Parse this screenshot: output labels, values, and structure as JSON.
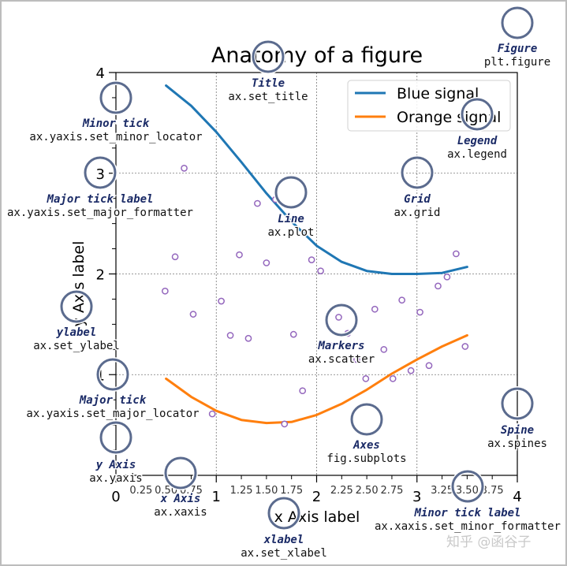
{
  "watermark": "知乎 @函谷子",
  "chart_data": {
    "type": "line",
    "title": "Anatomy of a figure",
    "xlabel": "x Axis label",
    "ylabel": "y Axis label",
    "xlim": [
      0,
      4
    ],
    "ylim": [
      0,
      4
    ],
    "grid": true,
    "major_xticks": [
      0,
      1,
      2,
      3,
      4
    ],
    "major_xtick_labels": [
      "0",
      "1",
      "2",
      "3",
      "4"
    ],
    "major_yticks": [
      1,
      2,
      3,
      4
    ],
    "major_ytick_labels": [
      "1",
      "2",
      "3",
      "4"
    ],
    "minor_xticks": [
      0.25,
      0.5,
      0.75,
      1.25,
      1.5,
      1.75,
      2.25,
      2.5,
      2.75,
      3.25,
      3.5,
      3.75
    ],
    "minor_xtick_labels": [
      "0.25",
      "0.50",
      "0.75",
      "1.25",
      "1.50",
      "1.75",
      "2.25",
      "2.50",
      "2.75",
      "3.25",
      "3.50",
      "3.75"
    ],
    "minor_yticks": [
      0.25,
      0.5,
      0.75,
      1.25,
      1.5,
      1.75,
      2.25,
      2.5,
      2.75,
      3.25,
      3.5,
      3.75
    ],
    "legend": {
      "placement": "top-right",
      "entries": [
        "Blue signal",
        "Orange signal"
      ]
    },
    "series": [
      {
        "name": "Blue signal",
        "color": "#1f77b4",
        "x": [
          0.5,
          0.75,
          1.0,
          1.25,
          1.5,
          1.75,
          2.0,
          2.25,
          2.5,
          2.75,
          3.0,
          3.25,
          3.5
        ],
        "values": [
          3.87,
          3.67,
          3.41,
          3.11,
          2.8,
          2.52,
          2.28,
          2.12,
          2.03,
          2.0,
          2.0,
          2.01,
          2.07
        ]
      },
      {
        "name": "Orange signal",
        "color": "#ff7f0e",
        "x": [
          0.5,
          0.75,
          1.0,
          1.25,
          1.5,
          1.75,
          2.0,
          2.25,
          2.5,
          2.75,
          3.0,
          3.25,
          3.5
        ],
        "values": [
          0.96,
          0.78,
          0.64,
          0.55,
          0.52,
          0.53,
          0.6,
          0.71,
          0.85,
          1.01,
          1.15,
          1.28,
          1.39
        ]
      }
    ],
    "scatter": {
      "color": "#9467bd",
      "x": [
        0.49,
        0.59,
        0.68,
        0.77,
        0.96,
        1.05,
        1.14,
        1.23,
        1.32,
        1.41,
        1.5,
        1.59,
        1.68,
        1.77,
        1.86,
        1.95,
        2.04,
        2.13,
        2.22,
        2.31,
        2.4,
        2.49,
        2.58,
        2.67,
        2.76,
        2.85,
        2.94,
        3.03,
        3.12,
        3.21,
        3.3,
        3.39,
        3.48
      ],
      "y": [
        1.83,
        2.17,
        3.05,
        1.6,
        0.61,
        1.73,
        1.39,
        2.19,
        1.36,
        2.7,
        2.11,
        2.74,
        0.51,
        1.4,
        0.84,
        2.14,
        2.03,
        1.29,
        1.57,
        1.41,
        1.15,
        0.96,
        1.65,
        1.25,
        0.96,
        1.74,
        1.04,
        1.62,
        1.09,
        1.88,
        1.97,
        2.2,
        1.28
      ]
    }
  },
  "annotations": [
    {
      "name": "figure",
      "title": "Figure",
      "code": "plt.figure"
    },
    {
      "name": "title",
      "title": "Title",
      "code": "ax.set_title"
    },
    {
      "name": "minor-tick",
      "title": "Minor tick",
      "code": "ax.yaxis.set_minor_locator"
    },
    {
      "name": "major-tick-label",
      "title": "Major tick label",
      "code": "ax.yaxis.set_major_formatter"
    },
    {
      "name": "legend",
      "title": "Legend",
      "code": "ax.legend"
    },
    {
      "name": "grid",
      "title": "Grid",
      "code": "ax.grid"
    },
    {
      "name": "line",
      "title": "Line",
      "code": "ax.plot"
    },
    {
      "name": "ylabel",
      "title": "ylabel",
      "code": "ax.set_ylabel"
    },
    {
      "name": "markers",
      "title": "Markers",
      "code": "ax.scatter"
    },
    {
      "name": "major-tick",
      "title": "Major tick",
      "code": "ax.yaxis.set_major_locator"
    },
    {
      "name": "spine",
      "title": "Spine",
      "code": "ax.spines"
    },
    {
      "name": "axes",
      "title": "Axes",
      "code": "fig.subplots"
    },
    {
      "name": "y-axis",
      "title": "y Axis",
      "code": "ax.yaxis"
    },
    {
      "name": "x-axis",
      "title": "x Axis",
      "code": "ax.xaxis"
    },
    {
      "name": "minor-tick-label",
      "title": "Minor tick label",
      "code": "ax.xaxis.set_minor_formatter"
    },
    {
      "name": "xlabel",
      "title": "xlabel",
      "code": "ax.set_xlabel"
    }
  ]
}
